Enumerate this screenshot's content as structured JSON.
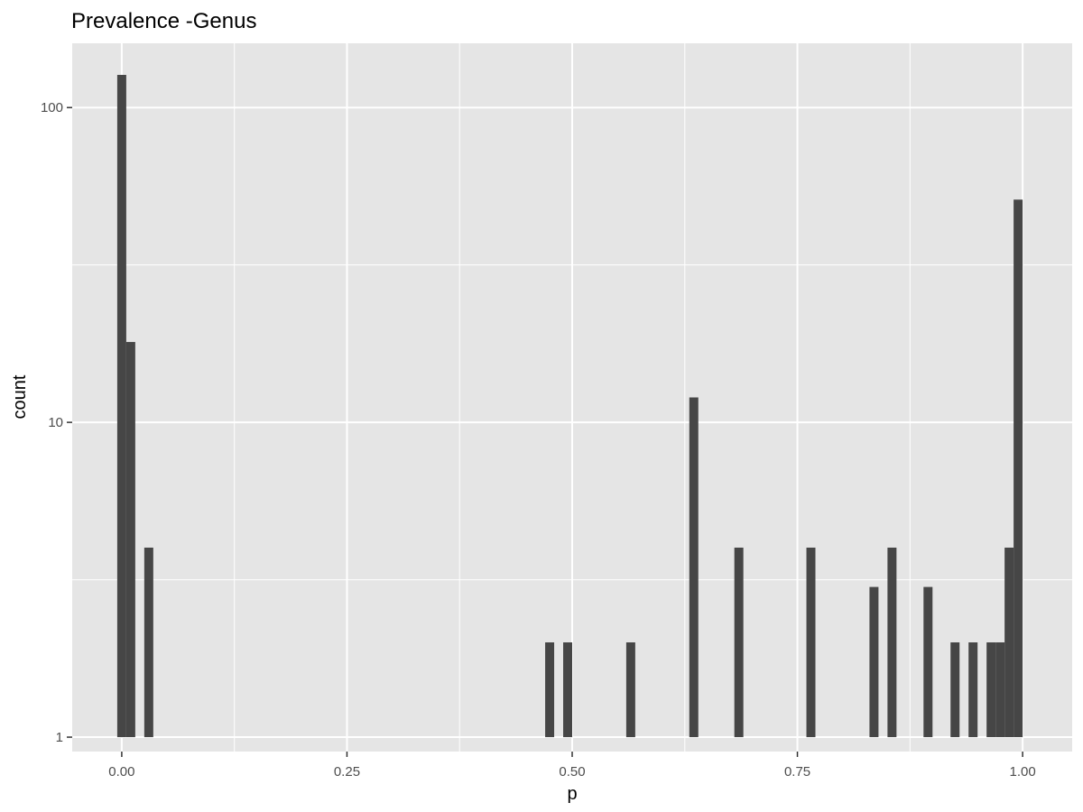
{
  "chart_data": {
    "type": "bar",
    "title": "Prevalence -Genus",
    "xlabel": "p",
    "ylabel": "count",
    "x_scale": "linear",
    "y_scale": "log10",
    "xlim": [
      -0.055,
      1.055
    ],
    "ylim": [
      0.9,
      160
    ],
    "x_ticks": [
      {
        "value": 0.0,
        "label": "0.00"
      },
      {
        "value": 0.25,
        "label": "0.25"
      },
      {
        "value": 0.5,
        "label": "0.50"
      },
      {
        "value": 0.75,
        "label": "0.75"
      },
      {
        "value": 1.0,
        "label": "1.00"
      }
    ],
    "y_ticks": [
      {
        "value": 1,
        "label": "1"
      },
      {
        "value": 10,
        "label": "10"
      },
      {
        "value": 100,
        "label": "100"
      }
    ],
    "bin_width": 0.01,
    "bins": [
      {
        "x": 0.0,
        "count": 127
      },
      {
        "x": 0.01,
        "count": 18
      },
      {
        "x": 0.03,
        "count": 4
      },
      {
        "x": 0.475,
        "count": 2
      },
      {
        "x": 0.495,
        "count": 2
      },
      {
        "x": 0.565,
        "count": 2
      },
      {
        "x": 0.635,
        "count": 12
      },
      {
        "x": 0.685,
        "count": 4
      },
      {
        "x": 0.765,
        "count": 4
      },
      {
        "x": 0.835,
        "count": 3
      },
      {
        "x": 0.855,
        "count": 4
      },
      {
        "x": 0.895,
        "count": 3
      },
      {
        "x": 0.925,
        "count": 2
      },
      {
        "x": 0.945,
        "count": 2
      },
      {
        "x": 0.965,
        "count": 2
      },
      {
        "x": 0.975,
        "count": 2
      },
      {
        "x": 0.985,
        "count": 4
      },
      {
        "x": 0.995,
        "count": 51
      }
    ],
    "grid": true,
    "legend": "none",
    "colors": {
      "panel_background": "#e5e5e5",
      "grid_major": "#ffffff",
      "bar_fill": "#464646",
      "tick_color": "#333333"
    }
  }
}
